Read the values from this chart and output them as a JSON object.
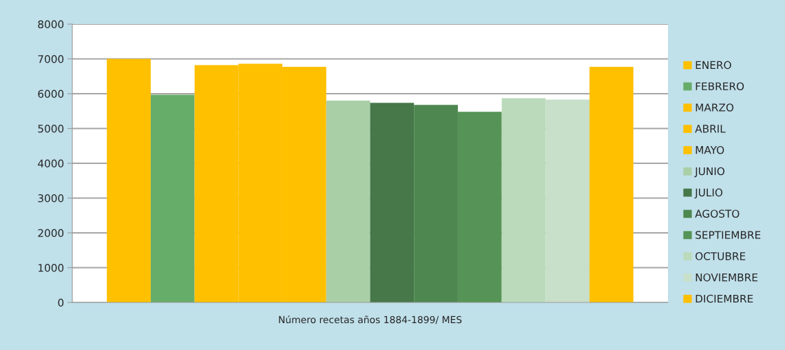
{
  "chart_data": {
    "type": "bar",
    "categories": [
      "Número recetas años 1884-1899/ MES"
    ],
    "series": [
      {
        "name": "ENERO",
        "color": "#ffc000",
        "values": [
          7000
        ]
      },
      {
        "name": "FEBRERO",
        "color": "#66ad6a",
        "values": [
          5970
        ]
      },
      {
        "name": "MARZO",
        "color": "#ffc000",
        "values": [
          6820
        ]
      },
      {
        "name": "ABRIL",
        "color": "#ffc000",
        "values": [
          6860
        ]
      },
      {
        "name": "MAYO",
        "color": "#ffc000",
        "values": [
          6770
        ]
      },
      {
        "name": "JUNIO",
        "color": "#a9cfa6",
        "values": [
          5800
        ]
      },
      {
        "name": "JULIO",
        "color": "#467849",
        "values": [
          5740
        ]
      },
      {
        "name": "AGOSTO",
        "color": "#4e8750",
        "values": [
          5680
        ]
      },
      {
        "name": "SEPTIEMBRE",
        "color": "#559456",
        "values": [
          5480
        ]
      },
      {
        "name": "OCTUBRE",
        "color": "#badabb",
        "values": [
          5870
        ]
      },
      {
        "name": "NOVIEMBRE",
        "color": "#c8dfc9",
        "values": [
          5830
        ]
      },
      {
        "name": "DICIEMBRE",
        "color": "#ffc000",
        "values": [
          6770
        ]
      }
    ],
    "ylim": [
      0,
      8000
    ],
    "yticks": [
      0,
      1000,
      2000,
      3000,
      4000,
      5000,
      6000,
      7000,
      8000
    ],
    "grid": "y",
    "legend": "right"
  }
}
